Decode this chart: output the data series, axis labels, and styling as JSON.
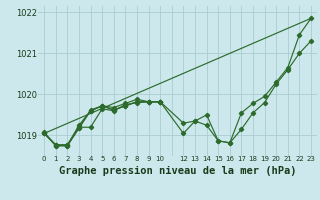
{
  "background_color": "#cce8ec",
  "grid_color": "#aaccd0",
  "line_color": "#2d6b2d",
  "title": "Graphe pression niveau de la mer (hPa)",
  "title_fontsize": 7.5,
  "xlim": [
    -0.5,
    23.5
  ],
  "ylim": [
    1018.5,
    1022.15
  ],
  "yticks": [
    1019,
    1020,
    1021,
    1022
  ],
  "ytick_labels": [
    "1019",
    "1020",
    "1021",
    "1022"
  ],
  "xtick_labels": [
    "0",
    "1",
    "2",
    "3",
    "4",
    "5",
    "6",
    "7",
    "8",
    "9",
    "10",
    "",
    "12",
    "13",
    "14",
    "15",
    "16",
    "17",
    "18",
    "19",
    "20",
    "21",
    "22",
    "23"
  ],
  "series1_x": [
    0,
    1,
    2,
    3,
    4,
    5,
    6,
    7,
    8,
    9,
    10,
    12,
    13,
    14,
    15,
    16,
    17,
    18,
    19,
    20,
    21,
    22,
    23
  ],
  "series1_y": [
    1019.05,
    1018.75,
    1018.75,
    1019.2,
    1019.2,
    1019.65,
    1019.6,
    1019.75,
    1019.8,
    1019.82,
    1019.82,
    1019.05,
    1019.35,
    1019.25,
    1018.87,
    1018.82,
    1019.15,
    1019.55,
    1019.8,
    1020.25,
    1020.6,
    1021.0,
    1021.3
  ],
  "series2_x": [
    0,
    1,
    2,
    3,
    4,
    5,
    6,
    7,
    8,
    9,
    10
  ],
  "series2_y": [
    1019.05,
    1018.77,
    1018.77,
    1019.25,
    1019.6,
    1019.72,
    1019.68,
    1019.78,
    1019.88,
    1019.82,
    1019.82
  ],
  "series3_x": [
    0,
    1,
    2,
    3,
    4,
    5,
    6,
    7,
    8,
    9,
    10
  ],
  "series3_y": [
    1019.05,
    1018.77,
    1018.77,
    1019.18,
    1019.6,
    1019.72,
    1019.62,
    1019.72,
    1019.82,
    1019.82,
    1019.82
  ],
  "series4_x": [
    0,
    23
  ],
  "series4_y": [
    1019.05,
    1021.85
  ],
  "series5_x": [
    0,
    1,
    2,
    3,
    4,
    5,
    6,
    7,
    8,
    9,
    10,
    12,
    13,
    14,
    15,
    16,
    17,
    18,
    19,
    20,
    21,
    22,
    23
  ],
  "series5_y": [
    1019.08,
    1018.75,
    1018.75,
    1019.18,
    1019.62,
    1019.72,
    1019.62,
    1019.72,
    1019.82,
    1019.82,
    1019.82,
    1019.3,
    1019.35,
    1019.5,
    1018.87,
    1018.82,
    1019.55,
    1019.78,
    1019.95,
    1020.3,
    1020.65,
    1021.45,
    1021.85
  ]
}
